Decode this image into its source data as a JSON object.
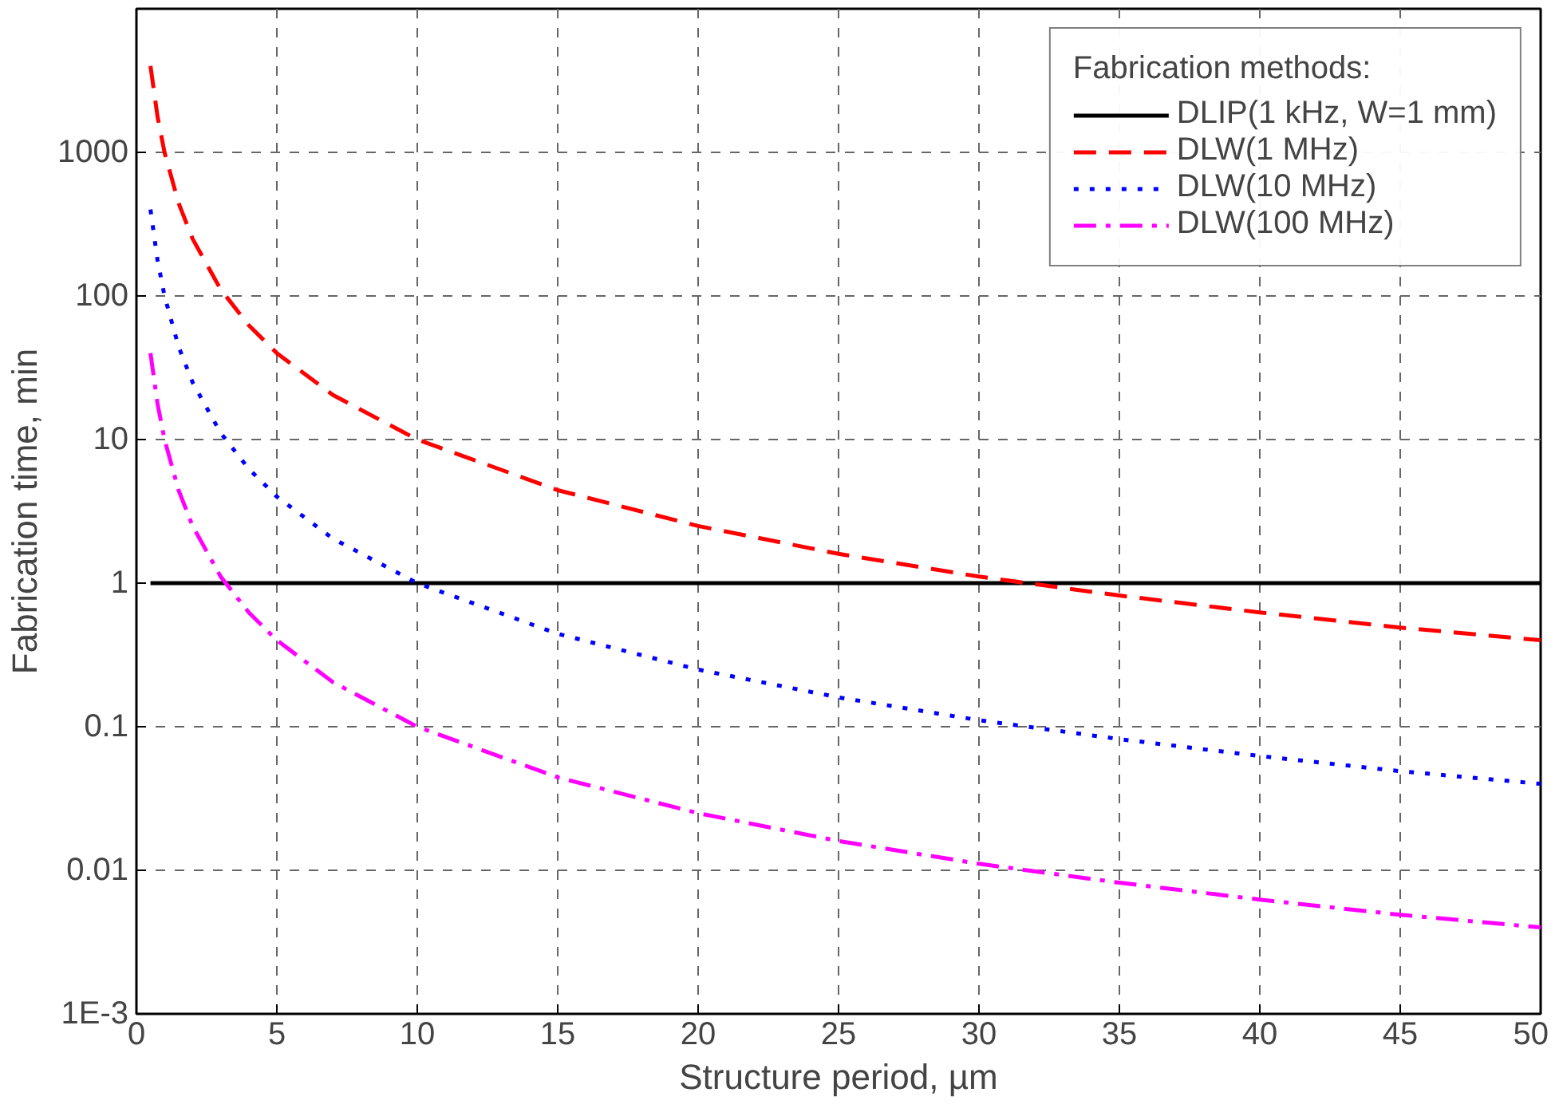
{
  "chart_data": {
    "type": "line",
    "xlabel": "Structure period, µm",
    "ylabel": "Fabrication time, min",
    "legend_title": "Fabrication methods:",
    "log": "y",
    "grid": true,
    "legend": "top right",
    "marker": "none",
    "xlim": [
      0,
      50
    ],
    "xticks": [
      0,
      5,
      10,
      15,
      20,
      25,
      30,
      35,
      40,
      45,
      50
    ],
    "ylim": [
      0.001,
      10000
    ],
    "yticks": [
      {
        "value": 0.001,
        "label": "1E-3"
      },
      0.01,
      0.1,
      1,
      10,
      100,
      1000
    ],
    "x": [
      0.5,
      0.75,
      1,
      1.5,
      2,
      3,
      4,
      5,
      7,
      10,
      15,
      20,
      25,
      30,
      35,
      40,
      45,
      50
    ],
    "series": [
      {
        "name": "DLIP(1 kHz, W=1 mm)",
        "color": "#000000",
        "line_style": "solid",
        "values": [
          1,
          1,
          1,
          1,
          1,
          1,
          1,
          1,
          1,
          1,
          1,
          1,
          1,
          1,
          1,
          1,
          1,
          1
        ]
      },
      {
        "name": "DLW(1 MHz)",
        "color": "#ff0000",
        "line_style": "dashed",
        "values": [
          4000,
          1778,
          1000,
          444,
          250,
          111,
          62.5,
          40,
          20.4,
          10,
          4.44,
          2.5,
          1.6,
          1.11,
          0.82,
          0.625,
          0.49,
          0.4
        ]
      },
      {
        "name": "DLW(10 MHz)",
        "color": "#0000ff",
        "line_style": "dotted",
        "values": [
          400,
          178,
          100,
          44.4,
          25,
          11.1,
          6.25,
          4,
          2.04,
          1,
          0.444,
          0.25,
          0.16,
          0.111,
          0.082,
          0.0625,
          0.049,
          0.04
        ]
      },
      {
        "name": "DLW(100 MHz)",
        "color": "#ff00ff",
        "line_style": "dashdot",
        "values": [
          40,
          17.8,
          10,
          4.44,
          2.5,
          1.11,
          0.625,
          0.4,
          0.204,
          0.1,
          0.0444,
          0.025,
          0.016,
          0.0111,
          0.0082,
          0.00625,
          0.0049,
          0.004
        ]
      }
    ]
  }
}
